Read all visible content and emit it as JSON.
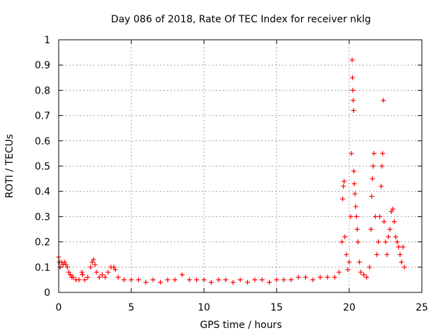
{
  "chart_data": {
    "type": "scatter",
    "title": "Day 086 of 2018, Rate Of TEC Index for receiver nklg",
    "xlabel": "GPS time / hours",
    "ylabel": "ROTI / TECUs",
    "xlim": [
      0,
      25
    ],
    "ylim": [
      0,
      1
    ],
    "xticks": [
      0,
      5,
      10,
      15,
      20,
      25
    ],
    "yticks": [
      0,
      0.1,
      0.2,
      0.3,
      0.4,
      0.5,
      0.6,
      0.7,
      0.8,
      0.9,
      1
    ],
    "xtick_labels": [
      "0",
      "5",
      "10",
      "15",
      "20",
      "25"
    ],
    "ytick_labels": [
      "0",
      "0.1",
      "0.2",
      "0.3",
      "0.4",
      "0.5",
      "0.6",
      "0.7",
      "0.8",
      "0.9",
      "1"
    ],
    "grid": true,
    "marker": "plus",
    "color": "#ff0000",
    "series": [
      {
        "points": [
          [
            0.0,
            0.14
          ],
          [
            0.05,
            0.12
          ],
          [
            0.1,
            0.1
          ],
          [
            0.2,
            0.12
          ],
          [
            0.3,
            0.11
          ],
          [
            0.4,
            0.12
          ],
          [
            0.5,
            0.11
          ],
          [
            0.6,
            0.1
          ],
          [
            0.7,
            0.08
          ],
          [
            0.8,
            0.07
          ],
          [
            0.9,
            0.06
          ],
          [
            1.0,
            0.06
          ],
          [
            1.2,
            0.05
          ],
          [
            1.4,
            0.05
          ],
          [
            1.6,
            0.08
          ],
          [
            1.65,
            0.07
          ],
          [
            1.8,
            0.05
          ],
          [
            2.0,
            0.06
          ],
          [
            2.2,
            0.1
          ],
          [
            2.3,
            0.12
          ],
          [
            2.4,
            0.13
          ],
          [
            2.5,
            0.11
          ],
          [
            2.6,
            0.08
          ],
          [
            2.8,
            0.06
          ],
          [
            3.0,
            0.07
          ],
          [
            3.2,
            0.06
          ],
          [
            3.4,
            0.08
          ],
          [
            3.6,
            0.1
          ],
          [
            3.8,
            0.1
          ],
          [
            3.9,
            0.09
          ],
          [
            4.1,
            0.06
          ],
          [
            4.5,
            0.05
          ],
          [
            5.0,
            0.05
          ],
          [
            5.5,
            0.05
          ],
          [
            6.0,
            0.04
          ],
          [
            6.5,
            0.05
          ],
          [
            7.0,
            0.04
          ],
          [
            7.5,
            0.05
          ],
          [
            8.0,
            0.05
          ],
          [
            8.5,
            0.07
          ],
          [
            9.0,
            0.05
          ],
          [
            9.5,
            0.05
          ],
          [
            10.0,
            0.05
          ],
          [
            10.5,
            0.04
          ],
          [
            11.0,
            0.05
          ],
          [
            11.5,
            0.05
          ],
          [
            12.0,
            0.04
          ],
          [
            12.5,
            0.05
          ],
          [
            13.0,
            0.04
          ],
          [
            13.5,
            0.05
          ],
          [
            14.0,
            0.05
          ],
          [
            14.5,
            0.04
          ],
          [
            15.0,
            0.05
          ],
          [
            15.5,
            0.05
          ],
          [
            16.0,
            0.05
          ],
          [
            16.5,
            0.06
          ],
          [
            17.0,
            0.06
          ],
          [
            17.5,
            0.05
          ],
          [
            18.0,
            0.06
          ],
          [
            18.5,
            0.06
          ],
          [
            19.0,
            0.06
          ],
          [
            19.3,
            0.08
          ],
          [
            19.5,
            0.2
          ],
          [
            19.55,
            0.37
          ],
          [
            19.6,
            0.42
          ],
          [
            19.65,
            0.44
          ],
          [
            19.7,
            0.22
          ],
          [
            19.8,
            0.15
          ],
          [
            19.9,
            0.09
          ],
          [
            20.0,
            0.12
          ],
          [
            20.1,
            0.3
          ],
          [
            20.15,
            0.55
          ],
          [
            20.2,
            0.92
          ],
          [
            20.22,
            0.85
          ],
          [
            20.25,
            0.8
          ],
          [
            20.27,
            0.76
          ],
          [
            20.3,
            0.72
          ],
          [
            20.32,
            0.48
          ],
          [
            20.35,
            0.43
          ],
          [
            20.4,
            0.39
          ],
          [
            20.45,
            0.34
          ],
          [
            20.5,
            0.3
          ],
          [
            20.55,
            0.25
          ],
          [
            20.6,
            0.2
          ],
          [
            20.7,
            0.12
          ],
          [
            20.8,
            0.08
          ],
          [
            21.0,
            0.07
          ],
          [
            21.2,
            0.06
          ],
          [
            21.4,
            0.1
          ],
          [
            21.5,
            0.25
          ],
          [
            21.55,
            0.38
          ],
          [
            21.6,
            0.45
          ],
          [
            21.65,
            0.5
          ],
          [
            21.7,
            0.55
          ],
          [
            21.8,
            0.3
          ],
          [
            21.9,
            0.15
          ],
          [
            22.0,
            0.2
          ],
          [
            22.1,
            0.3
          ],
          [
            22.2,
            0.42
          ],
          [
            22.25,
            0.5
          ],
          [
            22.3,
            0.55
          ],
          [
            22.35,
            0.76
          ],
          [
            22.4,
            0.28
          ],
          [
            22.5,
            0.2
          ],
          [
            22.6,
            0.15
          ],
          [
            22.7,
            0.22
          ],
          [
            22.8,
            0.25
          ],
          [
            22.9,
            0.32
          ],
          [
            23.0,
            0.33
          ],
          [
            23.1,
            0.28
          ],
          [
            23.2,
            0.22
          ],
          [
            23.3,
            0.2
          ],
          [
            23.4,
            0.18
          ],
          [
            23.5,
            0.15
          ],
          [
            23.6,
            0.12
          ],
          [
            23.7,
            0.18
          ],
          [
            23.8,
            0.1
          ]
        ]
      }
    ]
  }
}
